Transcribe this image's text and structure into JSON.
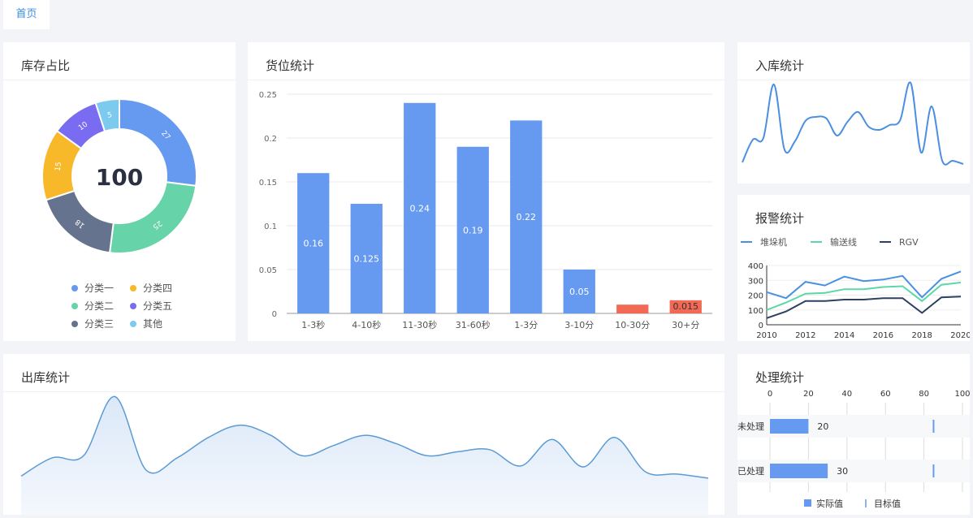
{
  "nav": {
    "home_tab": "首页"
  },
  "panels": {
    "inventory": {
      "title": "库存占比",
      "total": "100"
    },
    "location": {
      "title": "货位统计"
    },
    "inbound": {
      "title": "入库统计"
    },
    "alarm": {
      "title": "报警统计"
    },
    "outbound": {
      "title": "出库统计"
    },
    "process": {
      "title": "处理统计"
    }
  },
  "colors": {
    "blue": "#6699f0",
    "green": "#66d4a8",
    "slate": "#66738f",
    "yellow": "#f7b82a",
    "purple": "#7a6cf0",
    "sky": "#7ccaee",
    "red": "#f26a56"
  },
  "chart_data": [
    {
      "id": "inventory",
      "type": "pie",
      "donut": true,
      "center_label": "100",
      "slices": [
        {
          "name": "分类一",
          "value": 27,
          "color": "#6699f0"
        },
        {
          "name": "分类二",
          "value": 25,
          "color": "#66d4a8"
        },
        {
          "name": "分类三",
          "value": 18,
          "color": "#66738f"
        },
        {
          "name": "分类四",
          "value": 15,
          "color": "#f7b82a"
        },
        {
          "name": "分类五",
          "value": 10,
          "color": "#7a6cf0"
        },
        {
          "name": "其他",
          "value": 5,
          "color": "#7ccaee"
        }
      ],
      "legend_placement": "bottom"
    },
    {
      "id": "location",
      "type": "bar",
      "categories": [
        "1-3秒",
        "4-10秒",
        "11-30秒",
        "31-60秒",
        "1-3分",
        "3-10分",
        "10-30分",
        "30+分"
      ],
      "values": [
        0.16,
        0.125,
        0.24,
        0.19,
        0.22,
        0.05,
        0.01,
        0.015
      ],
      "data_labels": [
        "0.16",
        "0.125",
        "0.24",
        "0.19",
        "0.22",
        "0.05",
        "",
        "0.015"
      ],
      "bar_colors": [
        "#6699f0",
        "#6699f0",
        "#6699f0",
        "#6699f0",
        "#6699f0",
        "#6699f0",
        "#f26a56",
        "#f26a56"
      ],
      "yticks": [
        "0",
        "0.05",
        "0.1",
        "0.15",
        "0.2",
        "0.25"
      ],
      "ylim": [
        0,
        0.25
      ],
      "grid": true
    },
    {
      "id": "inbound",
      "type": "line",
      "smooth": true,
      "axes_visible": false,
      "values": [
        2,
        30,
        32,
        98,
        18,
        28,
        53,
        58,
        56,
        35,
        52,
        64,
        46,
        42,
        48,
        54,
        100,
        14,
        71,
        4,
        4,
        0
      ],
      "ylim": [
        0,
        110
      ],
      "color": "#4a8fe0"
    },
    {
      "id": "alarm",
      "type": "line",
      "series": [
        {
          "name": "堆垛机",
          "color": "#4a90e2",
          "values": [
            220,
            180,
            290,
            265,
            325,
            295,
            305,
            330,
            185,
            310,
            360
          ]
        },
        {
          "name": "输送线",
          "color": "#5ad8a6",
          "values": [
            100,
            150,
            210,
            215,
            240,
            240,
            255,
            260,
            160,
            270,
            285
          ]
        },
        {
          "name": "RGV",
          "color": "#2e3f63",
          "values": [
            45,
            90,
            160,
            160,
            170,
            170,
            180,
            180,
            80,
            185,
            190
          ]
        }
      ],
      "x": [
        2010,
        2011,
        2012,
        2013,
        2014,
        2015,
        2016,
        2017,
        2018,
        2019,
        2020
      ],
      "xticks": [
        "2010",
        "2012",
        "2014",
        "2016",
        "2018",
        "2020"
      ],
      "yticks": [
        "0",
        "100",
        "200",
        "300",
        "400"
      ],
      "ylim": [
        0,
        400
      ],
      "legend_placement": "top-left"
    },
    {
      "id": "outbound",
      "type": "area",
      "smooth": true,
      "axes_visible": false,
      "values": [
        22,
        40,
        42,
        100,
        28,
        40,
        60,
        72,
        62,
        42,
        52,
        62,
        54,
        42,
        46,
        48,
        32,
        58,
        31,
        60,
        26,
        24,
        20
      ],
      "ylim": [
        0,
        110
      ],
      "color": "#5b9bd5"
    },
    {
      "id": "process",
      "type": "bar",
      "orientation": "horizontal",
      "categories": [
        "未处理",
        "已处理"
      ],
      "series": [
        {
          "name": "实际值",
          "values": [
            20,
            30
          ],
          "color": "#6699f0"
        },
        {
          "name": "目标值",
          "values": [
            85,
            85
          ],
          "color": "#6699f0"
        }
      ],
      "data_labels": [
        "20",
        "30"
      ],
      "xticks": [
        "0",
        "20",
        "40",
        "60",
        "80",
        "100"
      ],
      "xlim": [
        0,
        100
      ],
      "legend_placement": "bottom"
    }
  ]
}
